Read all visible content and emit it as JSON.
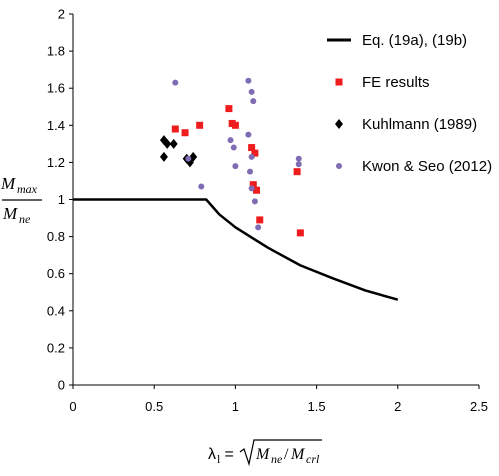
{
  "chart_data": {
    "type": "scatter",
    "xlim": [
      0,
      2.5
    ],
    "ylim": [
      0,
      2
    ],
    "x_ticks": [
      "0",
      "0.5",
      "1",
      "1.5",
      "2",
      "2.5"
    ],
    "y_ticks": [
      "0",
      "0.2",
      "0.4",
      "0.6",
      "0.8",
      "1",
      "1.2",
      "1.4",
      "1.6",
      "1.8",
      "2"
    ],
    "grid": false,
    "legend_position": "right",
    "ylabel": {
      "numerator": "M",
      "numerator_sub": "max",
      "denominator": "M",
      "denominator_sub": "ne"
    },
    "xlabel": {
      "lambda": "λ",
      "lambda_sub": "l",
      "equals": " = ",
      "num": "M",
      "num_sub": "ne",
      "slash": "/",
      "den": "M",
      "den_sub": "crl"
    },
    "series": [
      {
        "name": "Eq. (19a), (19b)",
        "kind": "line",
        "color": "#000000",
        "points": [
          [
            0,
            1.0
          ],
          [
            0.82,
            1.0
          ],
          [
            0.9,
            0.92
          ],
          [
            1.0,
            0.85
          ],
          [
            1.2,
            0.74
          ],
          [
            1.4,
            0.645
          ],
          [
            1.6,
            0.575
          ],
          [
            1.8,
            0.51
          ],
          [
            2.0,
            0.46
          ]
        ]
      },
      {
        "name": "FE results",
        "kind": "marker",
        "marker": "square",
        "color": "#ee1c1c",
        "points": [
          [
            0.63,
            1.38
          ],
          [
            0.69,
            1.36
          ],
          [
            0.78,
            1.4
          ],
          [
            0.96,
            1.49
          ],
          [
            0.98,
            1.41
          ],
          [
            1.0,
            1.4
          ],
          [
            1.1,
            1.28
          ],
          [
            1.12,
            1.25
          ],
          [
            1.11,
            1.08
          ],
          [
            1.13,
            1.05
          ],
          [
            1.15,
            0.89
          ],
          [
            1.38,
            1.15
          ],
          [
            1.4,
            0.82
          ]
        ]
      },
      {
        "name": "Kuhlmann (1989)",
        "kind": "marker",
        "marker": "diamond",
        "color": "#000000",
        "points": [
          [
            0.56,
            1.32
          ],
          [
            0.58,
            1.3
          ],
          [
            0.56,
            1.23
          ],
          [
            0.62,
            1.3
          ],
          [
            0.7,
            1.22
          ],
          [
            0.72,
            1.2
          ],
          [
            0.74,
            1.23
          ]
        ]
      },
      {
        "name": "Kwon & Seo (2012)",
        "kind": "marker",
        "marker": "circle",
        "color": "#7f6cb4",
        "points": [
          [
            0.63,
            1.63
          ],
          [
            0.71,
            1.22
          ],
          [
            0.79,
            1.07
          ],
          [
            0.97,
            1.32
          ],
          [
            0.99,
            1.28
          ],
          [
            1.0,
            1.18
          ],
          [
            1.08,
            1.64
          ],
          [
            1.1,
            1.58
          ],
          [
            1.11,
            1.53
          ],
          [
            1.08,
            1.35
          ],
          [
            1.1,
            1.23
          ],
          [
            1.09,
            1.15
          ],
          [
            1.1,
            1.06
          ],
          [
            1.12,
            0.99
          ],
          [
            1.14,
            0.85
          ],
          [
            1.39,
            1.22
          ],
          [
            1.39,
            1.19
          ]
        ]
      }
    ]
  }
}
